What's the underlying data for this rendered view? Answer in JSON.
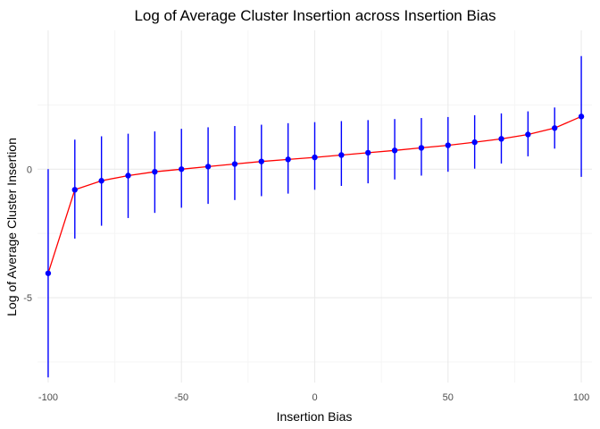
{
  "chart_data": {
    "type": "line",
    "title": "Log of Average Cluster Insertion across Insertion Bias",
    "xlabel": "Insertion Bias",
    "ylabel": "Log of Average Cluster Insertion",
    "xlim": [
      -104,
      104
    ],
    "ylim": [
      -8.3,
      5.4
    ],
    "xticks": [
      -100,
      -50,
      0,
      50,
      100
    ],
    "yticks": [
      -5,
      0
    ],
    "grid": true,
    "colors": {
      "line": "#ff0000",
      "point": "#0000ff",
      "errorbar": "#0000ff",
      "grid_major": "#ebebeb",
      "grid_minor": "#f5f5f5"
    },
    "series": [
      {
        "x": [
          -100,
          -90,
          -80,
          -70,
          -60,
          -50,
          -40,
          -30,
          -20,
          -10,
          0,
          10,
          20,
          30,
          40,
          50,
          60,
          70,
          80,
          90,
          100
        ],
        "y": [
          -4.05,
          -0.8,
          -0.45,
          -0.25,
          -0.1,
          0.0,
          0.1,
          0.2,
          0.3,
          0.38,
          0.46,
          0.55,
          0.64,
          0.73,
          0.83,
          0.93,
          1.05,
          1.18,
          1.35,
          1.6,
          2.05
        ],
        "lower": [
          -8.1,
          -2.7,
          -2.2,
          -1.9,
          -1.7,
          -1.5,
          -1.35,
          -1.2,
          -1.05,
          -0.95,
          -0.8,
          -0.65,
          -0.55,
          -0.4,
          -0.25,
          -0.1,
          0.02,
          0.22,
          0.5,
          0.8,
          -0.3
        ],
        "upper": [
          0.0,
          1.15,
          1.28,
          1.38,
          1.47,
          1.57,
          1.63,
          1.68,
          1.73,
          1.79,
          1.83,
          1.87,
          1.91,
          1.95,
          1.99,
          2.03,
          2.1,
          2.17,
          2.25,
          2.4,
          4.4
        ]
      }
    ]
  }
}
